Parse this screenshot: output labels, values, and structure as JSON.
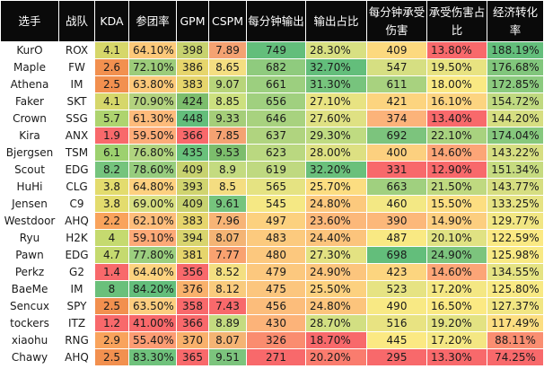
{
  "headers": [
    "选手",
    "战队",
    "KDA",
    "参团率",
    "GPM",
    "CSPM",
    "每分钟输出",
    "输出占比",
    "每分钟承受伤害",
    "承受伤害占比",
    "经济转化率"
  ],
  "rows": [
    [
      "KurO",
      "ROX",
      "4.1",
      "64.10%",
      "398",
      "7.89",
      "749",
      "28.30%",
      "409",
      "13.80%",
      "188.19%"
    ],
    [
      "Maple",
      "FW",
      "2.6",
      "72.10%",
      "386",
      "8.65",
      "682",
      "32.70%",
      "547",
      "19.50%",
      "176.68%"
    ],
    [
      "Athena",
      "IM",
      "2.5",
      "63.80%",
      "383",
      "9.07",
      "661",
      "31.30%",
      "611",
      "18.00%",
      "172.85%"
    ],
    [
      "Faker",
      "SKT",
      "4.1",
      "70.90%",
      "424",
      "8.85",
      "656",
      "27.10%",
      "421",
      "16.10%",
      "154.72%"
    ],
    [
      "Crown",
      "SSG",
      "5.7",
      "61.30%",
      "448",
      "9.33",
      "646",
      "27.60%",
      "374",
      "13.40%",
      "144.20%"
    ],
    [
      "Kira",
      "ANX",
      "1.9",
      "59.50%",
      "366",
      "7.85",
      "637",
      "29.30%",
      "692",
      "22.10%",
      "174.04%"
    ],
    [
      "Bjergsen",
      "TSM",
      "6.1",
      "76.80%",
      "435",
      "9.53",
      "623",
      "28.00%",
      "400",
      "14.60%",
      "143.22%"
    ],
    [
      "Scout",
      "EDG",
      "8.2",
      "78.60%",
      "409",
      "8.9",
      "619",
      "32.20%",
      "331",
      "12.90%",
      "151.34%"
    ],
    [
      "HuHi",
      "CLG",
      "3.8",
      "64.80%",
      "393",
      "8.5",
      "565",
      "25.70%",
      "663",
      "21.50%",
      "143.77%"
    ],
    [
      "Jensen",
      "C9",
      "3.8",
      "69.00%",
      "409",
      "9.61",
      "545",
      "24.80%",
      "460",
      "15.50%",
      "133.25%"
    ],
    [
      "Westdoor",
      "AHQ",
      "2.2",
      "62.10%",
      "383",
      "7.96",
      "497",
      "23.60%",
      "390",
      "14.90%",
      "129.77%"
    ],
    [
      "Ryu",
      "H2K",
      "4",
      "59.10%",
      "394",
      "8.07",
      "483",
      "24.40%",
      "487",
      "20.10%",
      "122.59%"
    ],
    [
      "Pawn",
      "EDG",
      "4.7",
      "77.80%",
      "381",
      "7.77",
      "480",
      "27.30%",
      "698",
      "24.90%",
      "125.98%"
    ],
    [
      "Perkz",
      "G2",
      "1.4",
      "64.40%",
      "356",
      "8.52",
      "479",
      "24.90%",
      "423",
      "14.60%",
      "134.55%"
    ],
    [
      "BaeMe",
      "IM",
      "8",
      "84.20%",
      "376",
      "8.12",
      "475",
      "25.50%",
      "523",
      "17.20%",
      "125.80%"
    ],
    [
      "Sencux",
      "SPY",
      "2.5",
      "63.50%",
      "358",
      "7.43",
      "456",
      "24.80%",
      "490",
      "16.50%",
      "127.37%"
    ],
    [
      "tockers",
      "ITZ",
      "1.2",
      "41.00%",
      "366",
      "8.89",
      "430",
      "28.70%",
      "516",
      "19.20%",
      "117.49%"
    ],
    [
      "xiaohu",
      "RNG",
      "2.9",
      "55.40%",
      "370",
      "8.07",
      "326",
      "18.70%",
      "445",
      "17.20%",
      "88.11%"
    ],
    [
      "Chawy",
      "AHQ",
      "2.5",
      "83.30%",
      "365",
      "9.51",
      "271",
      "20.20%",
      "295",
      "13.30%",
      "74.25%"
    ]
  ],
  "cell_colors": [
    [
      "#ffffff",
      "#ffffff",
      "#d6d76a",
      "#fcc97a",
      "#c7d26f",
      "#f4a272",
      "#63be7b",
      "#d8e082",
      "#fcd97f",
      "#f8696b",
      "#63be7b"
    ],
    [
      "#ffffff",
      "#ffffff",
      "#f2904f",
      "#9ccc7a",
      "#e6d56c",
      "#f4de81",
      "#8fcb7e",
      "#63be7b",
      "#d6df82",
      "#e8e381",
      "#81c67c"
    ],
    [
      "#ffffff",
      "#ffffff",
      "#f2904f",
      "#fcc97a",
      "#e6d56c",
      "#b8d57a",
      "#9ccf7f",
      "#77c47d",
      "#a8d27f",
      "#f9e983",
      "#8bca7e"
    ],
    [
      "#ffffff",
      "#ffffff",
      "#d6d76a",
      "#b3d27e",
      "#7cbd6c",
      "#cce07f",
      "#a0d07f",
      "#e8e382",
      "#fcd47f",
      "#fcd480",
      "#bfd980"
    ],
    [
      "#ffffff",
      "#ffffff",
      "#aed46f",
      "#fdbb7b",
      "#63be7b",
      "#a5ce79",
      "#a8d27f",
      "#dfe183",
      "#fcb37a",
      "#f8696b",
      "#d6de81"
    ],
    [
      "#ffffff",
      "#ffffff",
      "#f8696b",
      "#fdac78",
      "#f8696b",
      "#f4a272",
      "#b0d47f",
      "#bfdb81",
      "#7cc47d",
      "#a8d27f",
      "#86c87d"
    ],
    [
      "#ffffff",
      "#ffffff",
      "#9dd16f",
      "#b1d47f",
      "#69c17b",
      "#7cbd6c",
      "#bad880",
      "#dde082",
      "#fcd07f",
      "#fca577",
      "#d6de81"
    ],
    [
      "#ffffff",
      "#ffffff",
      "#75c47d",
      "#97cd7e",
      "#c7d26f",
      "#c4db80",
      "#bfd980",
      "#6ac07b",
      "#f8696b",
      "#f8696b",
      "#c6db80"
    ],
    [
      "#ffffff",
      "#ffffff",
      "#e3dc6e",
      "#fdd07f",
      "#d0d46f",
      "#f4dd81",
      "#e5e382",
      "#fcdd81",
      "#a0d07f",
      "#bfd980",
      "#d6de81"
    ],
    [
      "#ffffff",
      "#ffffff",
      "#e3dc6e",
      "#d8e082",
      "#c7d26f",
      "#76c47d",
      "#f5e884",
      "#fcc97d",
      "#f3e884",
      "#fcde81",
      "#e6e383"
    ],
    [
      "#ffffff",
      "#ffffff",
      "#f9a35c",
      "#fdbd7b",
      "#e6d56c",
      "#f7b476",
      "#fcd17f",
      "#fcb87a",
      "#fcb87a",
      "#fcce7f",
      "#f1e683"
    ],
    [
      "#ffffff",
      "#ffffff",
      "#c5da6f",
      "#fda977",
      "#d8d46e",
      "#f4b474",
      "#fcca7e",
      "#fcc47c",
      "#f9e983",
      "#e0e283",
      "#fbe983"
    ],
    [
      "#ffffff",
      "#ffffff",
      "#c5da6f",
      "#9ccf7f",
      "#e6d56c",
      "#f9a270",
      "#fcc87e",
      "#e3e282",
      "#63be7b",
      "#7cc47d",
      "#f8e984"
    ],
    [
      "#ffffff",
      "#ffffff",
      "#f8696b",
      "#fcd27f",
      "#f8696b",
      "#f3df81",
      "#fcc87e",
      "#fcc57d",
      "#fcd57f",
      "#fca577",
      "#e5e383"
    ],
    [
      "#ffffff",
      "#ffffff",
      "#6ac07b",
      "#63be7b",
      "#f9b16c",
      "#f9cb7d",
      "#fcc67e",
      "#fcd17f",
      "#e6e383",
      "#f4e783",
      "#f8e984"
    ],
    [
      "#ffffff",
      "#ffffff",
      "#f2904f",
      "#fccd7f",
      "#f8696b",
      "#f8696b",
      "#fcbd7b",
      "#fcc47c",
      "#f8e984",
      "#fbe983",
      "#f1e683"
    ],
    [
      "#ffffff",
      "#ffffff",
      "#f8696b",
      "#f8696b",
      "#f8696b",
      "#c4db80",
      "#fcb379",
      "#d2df82",
      "#e8e382",
      "#e3e282",
      "#fcde81"
    ],
    [
      "#ffffff",
      "#ffffff",
      "#f9a35c",
      "#fc9c73",
      "#f9b16c",
      "#f4b474",
      "#fa8c6f",
      "#f8696b",
      "#fbe983",
      "#f4e783",
      "#fa8e71"
    ],
    [
      "#ffffff",
      "#ffffff",
      "#f2904f",
      "#6fc27c",
      "#f8696b",
      "#7cc47d",
      "#f8696b",
      "#fa7c6e",
      "#f8696b",
      "#f8696b",
      "#f8696b"
    ]
  ]
}
